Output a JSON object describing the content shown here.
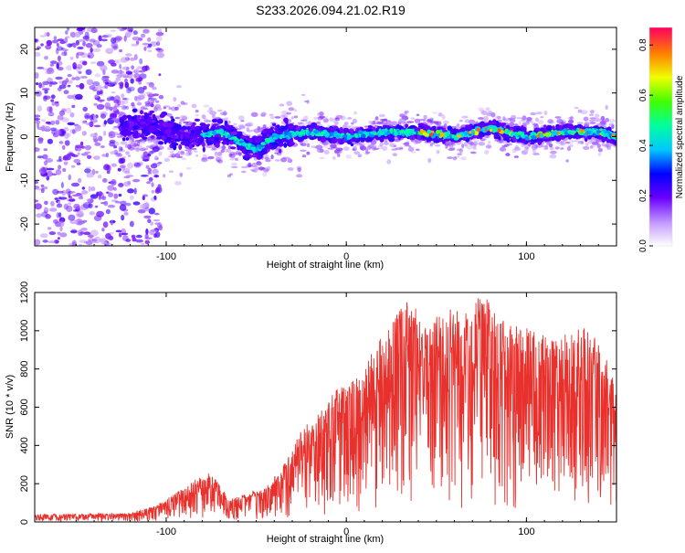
{
  "title": "S233.2026.094.21.02.R19",
  "chart_data": [
    {
      "type": "heatmap",
      "xlabel": "Height of straight line (km)",
      "ylabel": "Frequency (Hz)",
      "xlim": [
        -173,
        150
      ],
      "ylim": [
        -25,
        25
      ],
      "x_ticks": [
        -100,
        0,
        100
      ],
      "y_ticks": [
        -20,
        -10,
        0,
        10,
        20
      ],
      "x_tick_labels": [
        "-100",
        "0",
        "100"
      ],
      "y_tick_labels": [
        "-20",
        "-10",
        "0",
        "10",
        "20"
      ],
      "colorbar": {
        "label": "Normalized spectral amplitude",
        "range": [
          0.0,
          0.87
        ],
        "ticks": [
          0.0,
          0.2,
          0.4,
          0.6,
          0.8
        ],
        "tick_labels": [
          "0.0",
          "0.2",
          "0.4",
          "0.6",
          "0.8"
        ]
      },
      "description_ridge": {
        "x": [
          -130,
          -110,
          -90,
          -70,
          -50,
          -40,
          -20,
          0,
          20,
          40,
          60,
          80,
          100,
          120,
          140,
          150
        ],
        "center_freq": [
          2,
          3,
          0,
          1,
          -3,
          0,
          1,
          0,
          1,
          1,
          0,
          2,
          0,
          1,
          1,
          0
        ]
      }
    },
    {
      "type": "line",
      "xlabel": "Height of straight line (km)",
      "ylabel": "SNR (10 * v/v)",
      "xlim": [
        -173,
        150
      ],
      "ylim": [
        0,
        1200
      ],
      "x_ticks": [
        -100,
        0,
        100
      ],
      "y_ticks": [
        0,
        200,
        400,
        600,
        800,
        1000,
        1200
      ],
      "x_tick_labels": [
        "-100",
        "0",
        "100"
      ],
      "y_tick_labels": [
        "0",
        "200",
        "400",
        "600",
        "800",
        "1000",
        "1200"
      ],
      "color": "#e8302c",
      "envelope": {
        "x": [
          -173,
          -120,
          -105,
          -95,
          -85,
          -75,
          -65,
          -55,
          -45,
          -35,
          -25,
          -15,
          -5,
          5,
          15,
          25,
          35,
          45,
          55,
          65,
          75,
          85,
          95,
          105,
          115,
          125,
          135,
          145,
          150
        ],
        "y_max": [
          40,
          45,
          90,
          150,
          220,
          260,
          120,
          150,
          180,
          300,
          480,
          600,
          700,
          760,
          900,
          1050,
          1180,
          1000,
          1150,
          1080,
          1200,
          1100,
          1050,
          1000,
          950,
          1000,
          1020,
          850,
          700
        ]
      }
    }
  ]
}
